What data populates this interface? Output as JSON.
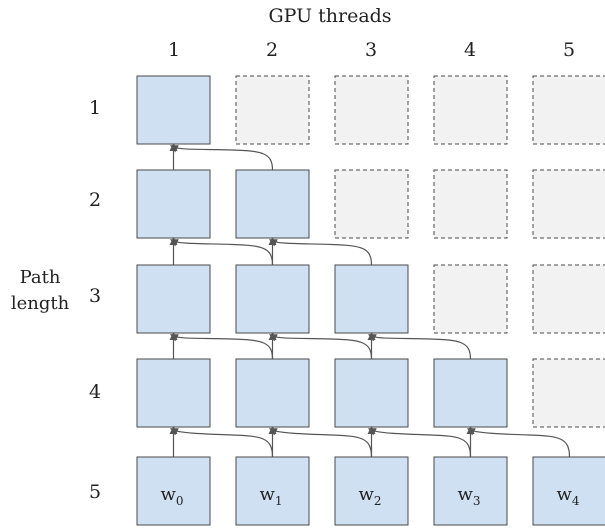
{
  "title": "GPU threads",
  "column_labels": [
    "1",
    "2",
    "3",
    "4",
    "5"
  ],
  "row_labels": [
    "1",
    "2",
    "3",
    "4",
    "5"
  ],
  "side_label": [
    "Path",
    "length"
  ],
  "weights": [
    {
      "base": "w",
      "sub": "0"
    },
    {
      "base": "w",
      "sub": "1"
    },
    {
      "base": "w",
      "sub": "2"
    },
    {
      "base": "w",
      "sub": "3"
    },
    {
      "base": "w",
      "sub": "4"
    }
  ],
  "colors": {
    "active_cell": "#cfe0f3",
    "empty_cell": "#f2f2f2",
    "stroke": "#4a4a4a",
    "arrow": "#555555"
  }
}
